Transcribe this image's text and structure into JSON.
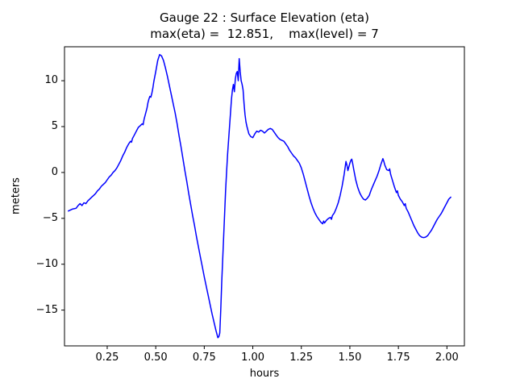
{
  "chart_data": {
    "type": "line",
    "title": "Gauge 22 : Surface Elevation (eta)",
    "subtitle": "max(eta) =  12.851,    max(level) = 7",
    "xlabel": "hours",
    "ylabel": "meters",
    "max_eta": 12.851,
    "max_level": 7,
    "xlim": [
      0.03,
      2.09
    ],
    "ylim": [
      -18.9,
      13.7
    ],
    "grid": false,
    "legend": false,
    "axes_color": "#000000",
    "background_color": "#ffffff",
    "xticks": {
      "values": [
        0.25,
        0.5,
        0.75,
        1.0,
        1.25,
        1.5,
        1.75,
        2.0
      ],
      "labels": [
        "0.25",
        "0.50",
        "0.75",
        "1.00",
        "1.25",
        "1.50",
        "1.75",
        "2.00"
      ]
    },
    "yticks": {
      "values": [
        -15,
        -10,
        -5,
        0,
        5,
        10
      ],
      "labels": [
        "−15",
        "−10",
        "−5",
        "0",
        "5",
        "10"
      ]
    },
    "series": [
      {
        "name": "eta",
        "color": "#0000ff",
        "line_width": 1.5,
        "points": [
          [
            0.05,
            -4.2
          ],
          [
            0.07,
            -4.0
          ],
          [
            0.09,
            -3.9
          ],
          [
            0.1,
            -3.6
          ],
          [
            0.11,
            -3.4
          ],
          [
            0.12,
            -3.6
          ],
          [
            0.13,
            -3.3
          ],
          [
            0.14,
            -3.4
          ],
          [
            0.15,
            -3.1
          ],
          [
            0.16,
            -2.9
          ],
          [
            0.17,
            -2.7
          ],
          [
            0.18,
            -2.5
          ],
          [
            0.19,
            -2.3
          ],
          [
            0.2,
            -2.0
          ],
          [
            0.21,
            -1.8
          ],
          [
            0.22,
            -1.5
          ],
          [
            0.23,
            -1.3
          ],
          [
            0.24,
            -1.1
          ],
          [
            0.25,
            -0.8
          ],
          [
            0.26,
            -0.5
          ],
          [
            0.27,
            -0.3
          ],
          [
            0.28,
            0.0
          ],
          [
            0.29,
            0.2
          ],
          [
            0.3,
            0.5
          ],
          [
            0.31,
            0.9
          ],
          [
            0.32,
            1.3
          ],
          [
            0.33,
            1.8
          ],
          [
            0.34,
            2.2
          ],
          [
            0.35,
            2.7
          ],
          [
            0.36,
            3.1
          ],
          [
            0.37,
            3.4
          ],
          [
            0.375,
            3.3
          ],
          [
            0.38,
            3.7
          ],
          [
            0.39,
            4.1
          ],
          [
            0.4,
            4.5
          ],
          [
            0.41,
            4.9
          ],
          [
            0.42,
            5.1
          ],
          [
            0.43,
            5.3
          ],
          [
            0.435,
            5.2
          ],
          [
            0.44,
            5.8
          ],
          [
            0.45,
            6.6
          ],
          [
            0.455,
            7.0
          ],
          [
            0.46,
            7.6
          ],
          [
            0.465,
            8.0
          ],
          [
            0.47,
            8.3
          ],
          [
            0.475,
            8.2
          ],
          [
            0.48,
            8.6
          ],
          [
            0.485,
            9.2
          ],
          [
            0.49,
            9.9
          ],
          [
            0.5,
            11.0
          ],
          [
            0.51,
            12.2
          ],
          [
            0.52,
            12.851
          ],
          [
            0.53,
            12.7
          ],
          [
            0.54,
            12.2
          ],
          [
            0.55,
            11.4
          ],
          [
            0.56,
            10.5
          ],
          [
            0.57,
            9.5
          ],
          [
            0.58,
            8.5
          ],
          [
            0.59,
            7.5
          ],
          [
            0.6,
            6.5
          ],
          [
            0.61,
            5.3
          ],
          [
            0.62,
            4.0
          ],
          [
            0.63,
            2.8
          ],
          [
            0.64,
            1.5
          ],
          [
            0.65,
            0.2
          ],
          [
            0.66,
            -1.0
          ],
          [
            0.67,
            -2.3
          ],
          [
            0.68,
            -3.5
          ],
          [
            0.69,
            -4.7
          ],
          [
            0.7,
            -5.8
          ],
          [
            0.71,
            -7.0
          ],
          [
            0.72,
            -8.1
          ],
          [
            0.73,
            -9.2
          ],
          [
            0.74,
            -10.3
          ],
          [
            0.75,
            -11.4
          ],
          [
            0.76,
            -12.4
          ],
          [
            0.77,
            -13.4
          ],
          [
            0.78,
            -14.4
          ],
          [
            0.79,
            -15.4
          ],
          [
            0.8,
            -16.3
          ],
          [
            0.81,
            -17.2
          ],
          [
            0.815,
            -17.6
          ],
          [
            0.82,
            -18.0
          ],
          [
            0.825,
            -17.9
          ],
          [
            0.83,
            -17.5
          ],
          [
            0.835,
            -15.0
          ],
          [
            0.84,
            -12.0
          ],
          [
            0.845,
            -9.5
          ],
          [
            0.85,
            -7.0
          ],
          [
            0.855,
            -4.5
          ],
          [
            0.86,
            -2.0
          ],
          [
            0.865,
            0.0
          ],
          [
            0.87,
            2.0
          ],
          [
            0.875,
            3.5
          ],
          [
            0.88,
            5.0
          ],
          [
            0.885,
            6.5
          ],
          [
            0.89,
            8.0
          ],
          [
            0.895,
            9.0
          ],
          [
            0.9,
            9.6
          ],
          [
            0.905,
            8.8
          ],
          [
            0.91,
            10.2
          ],
          [
            0.915,
            10.8
          ],
          [
            0.92,
            11.0
          ],
          [
            0.925,
            10.0
          ],
          [
            0.93,
            12.4
          ],
          [
            0.935,
            11.0
          ],
          [
            0.94,
            10.0
          ],
          [
            0.945,
            9.6
          ],
          [
            0.95,
            9.0
          ],
          [
            0.955,
            7.5
          ],
          [
            0.96,
            6.3
          ],
          [
            0.965,
            5.5
          ],
          [
            0.97,
            5.0
          ],
          [
            0.975,
            4.6
          ],
          [
            0.98,
            4.2
          ],
          [
            0.99,
            3.9
          ],
          [
            1.0,
            3.8
          ],
          [
            1.01,
            4.2
          ],
          [
            1.02,
            4.5
          ],
          [
            1.03,
            4.4
          ],
          [
            1.04,
            4.6
          ],
          [
            1.05,
            4.5
          ],
          [
            1.06,
            4.3
          ],
          [
            1.07,
            4.5
          ],
          [
            1.08,
            4.7
          ],
          [
            1.09,
            4.8
          ],
          [
            1.1,
            4.7
          ],
          [
            1.11,
            4.4
          ],
          [
            1.12,
            4.1
          ],
          [
            1.13,
            3.8
          ],
          [
            1.14,
            3.6
          ],
          [
            1.15,
            3.5
          ],
          [
            1.16,
            3.4
          ],
          [
            1.17,
            3.1
          ],
          [
            1.18,
            2.8
          ],
          [
            1.19,
            2.4
          ],
          [
            1.2,
            2.1
          ],
          [
            1.21,
            1.8
          ],
          [
            1.22,
            1.6
          ],
          [
            1.23,
            1.3
          ],
          [
            1.24,
            1.0
          ],
          [
            1.25,
            0.5
          ],
          [
            1.26,
            -0.2
          ],
          [
            1.27,
            -1.0
          ],
          [
            1.28,
            -1.8
          ],
          [
            1.29,
            -2.6
          ],
          [
            1.3,
            -3.3
          ],
          [
            1.31,
            -3.9
          ],
          [
            1.32,
            -4.4
          ],
          [
            1.33,
            -4.8
          ],
          [
            1.34,
            -5.1
          ],
          [
            1.35,
            -5.4
          ],
          [
            1.36,
            -5.6
          ],
          [
            1.365,
            -5.3
          ],
          [
            1.37,
            -5.5
          ],
          [
            1.38,
            -5.2
          ],
          [
            1.39,
            -5.0
          ],
          [
            1.4,
            -4.9
          ],
          [
            1.405,
            -5.1
          ],
          [
            1.41,
            -4.7
          ],
          [
            1.42,
            -4.4
          ],
          [
            1.43,
            -3.9
          ],
          [
            1.44,
            -3.3
          ],
          [
            1.45,
            -2.5
          ],
          [
            1.46,
            -1.5
          ],
          [
            1.47,
            -0.3
          ],
          [
            1.48,
            1.2
          ],
          [
            1.485,
            0.8
          ],
          [
            1.49,
            0.2
          ],
          [
            1.495,
            0.6
          ],
          [
            1.5,
            1.0
          ],
          [
            1.505,
            1.3
          ],
          [
            1.51,
            1.45
          ],
          [
            1.515,
            0.9
          ],
          [
            1.52,
            0.3
          ],
          [
            1.53,
            -0.8
          ],
          [
            1.54,
            -1.6
          ],
          [
            1.55,
            -2.2
          ],
          [
            1.56,
            -2.6
          ],
          [
            1.57,
            -2.9
          ],
          [
            1.58,
            -3.0
          ],
          [
            1.59,
            -2.8
          ],
          [
            1.6,
            -2.5
          ],
          [
            1.61,
            -1.9
          ],
          [
            1.62,
            -1.4
          ],
          [
            1.63,
            -0.9
          ],
          [
            1.64,
            -0.4
          ],
          [
            1.65,
            0.2
          ],
          [
            1.66,
            0.9
          ],
          [
            1.67,
            1.5
          ],
          [
            1.675,
            1.2
          ],
          [
            1.68,
            0.8
          ],
          [
            1.69,
            0.3
          ],
          [
            1.7,
            0.2
          ],
          [
            1.705,
            0.4
          ],
          [
            1.71,
            -0.2
          ],
          [
            1.72,
            -0.9
          ],
          [
            1.73,
            -1.6
          ],
          [
            1.74,
            -2.2
          ],
          [
            1.745,
            -2.0
          ],
          [
            1.75,
            -2.5
          ],
          [
            1.76,
            -2.9
          ],
          [
            1.77,
            -3.2
          ],
          [
            1.78,
            -3.6
          ],
          [
            1.785,
            -3.4
          ],
          [
            1.79,
            -3.9
          ],
          [
            1.8,
            -4.3
          ],
          [
            1.81,
            -4.8
          ],
          [
            1.82,
            -5.3
          ],
          [
            1.83,
            -5.8
          ],
          [
            1.84,
            -6.2
          ],
          [
            1.85,
            -6.6
          ],
          [
            1.86,
            -6.9
          ],
          [
            1.87,
            -7.05
          ],
          [
            1.88,
            -7.1
          ],
          [
            1.89,
            -7.05
          ],
          [
            1.9,
            -6.9
          ],
          [
            1.91,
            -6.6
          ],
          [
            1.92,
            -6.3
          ],
          [
            1.93,
            -5.9
          ],
          [
            1.94,
            -5.5
          ],
          [
            1.95,
            -5.1
          ],
          [
            1.96,
            -4.8
          ],
          [
            1.97,
            -4.5
          ],
          [
            1.98,
            -4.1
          ],
          [
            1.99,
            -3.7
          ],
          [
            2.0,
            -3.3
          ],
          [
            2.01,
            -2.9
          ],
          [
            2.02,
            -2.7
          ]
        ]
      }
    ]
  }
}
